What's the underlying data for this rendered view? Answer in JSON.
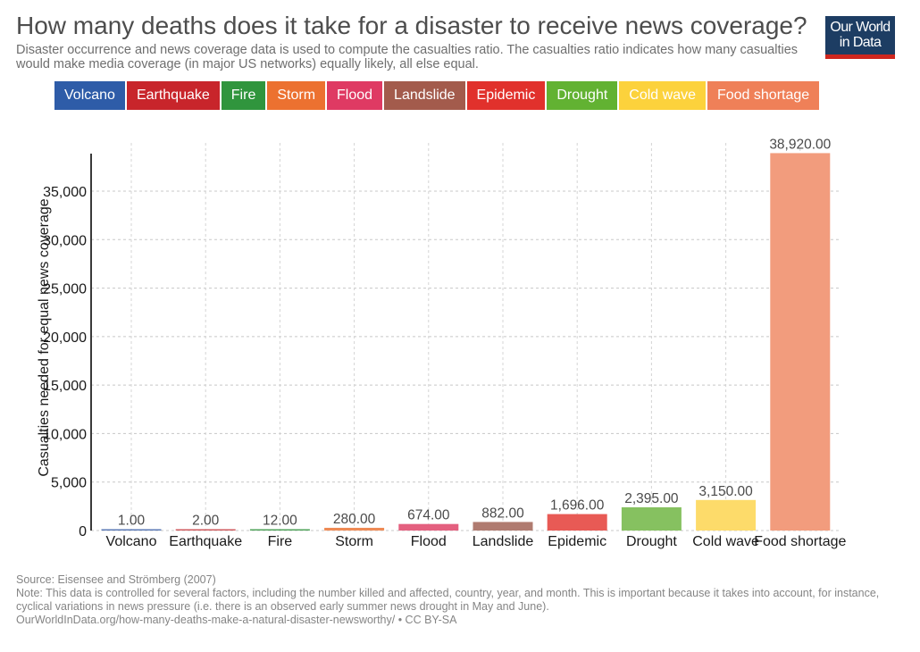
{
  "header": {
    "title": "How many deaths does it take for a disaster to receive news coverage?",
    "subtitle": "Disaster occurrence and news coverage data is used to compute the casualties ratio. The casualties ratio indicates how many casualties would make media coverage (in major US networks) equally likely, all else equal.",
    "logo_line1": "Our World",
    "logo_line2": "in Data"
  },
  "legend": [
    {
      "label": "Volcano",
      "color": "#2e5ca8"
    },
    {
      "label": "Earthquake",
      "color": "#c8252b"
    },
    {
      "label": "Fire",
      "color": "#30953d"
    },
    {
      "label": "Storm",
      "color": "#ec7130"
    },
    {
      "label": "Flood",
      "color": "#df3a63"
    },
    {
      "label": "Landslide",
      "color": "#a35b4c"
    },
    {
      "label": "Epidemic",
      "color": "#e1312c"
    },
    {
      "label": "Drought",
      "color": "#62b232"
    },
    {
      "label": "Cold wave",
      "color": "#fcd23c"
    },
    {
      "label": "Food shortage",
      "color": "#ef8058"
    }
  ],
  "chart_data": {
    "type": "bar",
    "title": "How many deaths does it take for a disaster to receive news coverage?",
    "xlabel": "",
    "ylabel": "Casualties needed for equal news coverage",
    "categories": [
      "Volcano",
      "Earthquake",
      "Fire",
      "Storm",
      "Flood",
      "Landslide",
      "Epidemic",
      "Drought",
      "Cold wave",
      "Food shortage"
    ],
    "values": [
      1,
      2,
      12,
      280,
      674,
      882,
      1696,
      2395,
      3150,
      38920
    ],
    "value_labels": [
      "1.00",
      "2.00",
      "12.00",
      "280.00",
      "674.00",
      "882.00",
      "1,696.00",
      "2,395.00",
      "3,150.00",
      "38,920.00"
    ],
    "bar_colors": [
      "#5b79b6",
      "#cf5a5d",
      "#4fa35a",
      "#ee8a55",
      "#e4607f",
      "#b07b70",
      "#e85a55",
      "#86c160",
      "#fddb6a",
      "#f29c7d"
    ],
    "ylim": [
      0,
      38920
    ],
    "yticks": [
      0,
      5000,
      10000,
      15000,
      20000,
      25000,
      30000,
      35000
    ],
    "ytick_labels": [
      "0",
      "5,000",
      "10,000",
      "15,000",
      "20,000",
      "25,000",
      "30,000",
      "35,000"
    ],
    "grid": true,
    "legend_position": "top"
  },
  "footer": {
    "source": "Source: Eisensee and Strömberg (2007)",
    "note": "Note: This data is controlled for several factors, including the number killed and affected, country, year, and month. This is important because it takes into account, for instance, cyclical variations in news pressure (i.e. there is an observed early summer news drought in May and June).",
    "url": "OurWorldInData.org/how-many-deaths-make-a-natural-disaster-newsworthy/ • CC BY-SA"
  }
}
